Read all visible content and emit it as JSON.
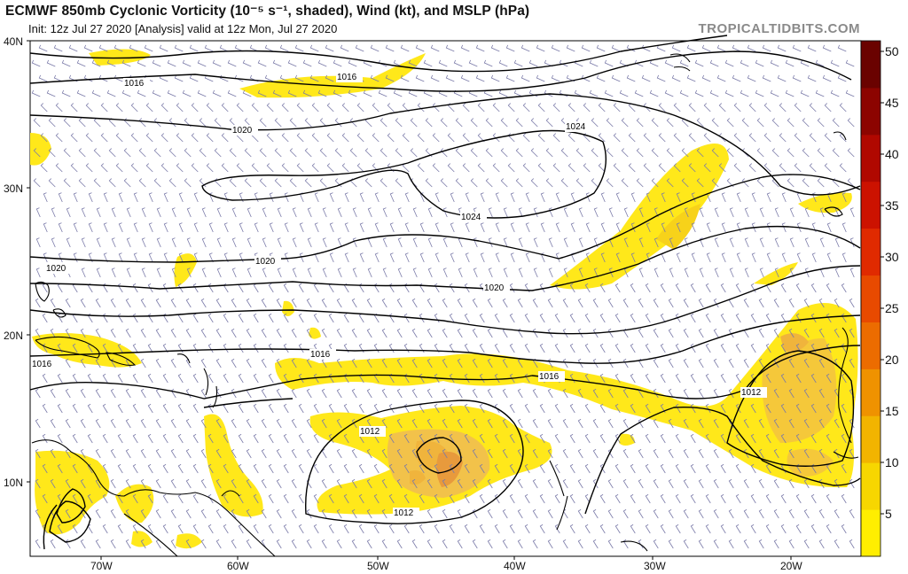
{
  "header": {
    "title": "ECMWF 850mb Cyclonic Vorticity (10⁻⁵ s⁻¹, shaded), Wind (kt), and MSLP (hPa)",
    "subtitle": "Init: 12z Jul 27 2020  [Analysis]   valid at 12z Mon, Jul 27 2020",
    "brand": "TROPICALTIDBITS.COM"
  },
  "map": {
    "lat_labels": [
      "40N",
      "30N",
      "20N",
      "10N"
    ],
    "lon_labels": [
      "70W",
      "60W",
      "50W",
      "40W",
      "30W",
      "20W"
    ],
    "isobar_labels": [
      "1016",
      "1016",
      "1020",
      "1024",
      "1024",
      "1020",
      "1020",
      "1020",
      "1016",
      "1016",
      "1016",
      "1012",
      "1012",
      "1012"
    ]
  },
  "colorbar": {
    "ticks": [
      "50",
      "45",
      "40",
      "35",
      "30",
      "25",
      "20",
      "15",
      "10",
      "5"
    ],
    "colors": [
      "#ffee00",
      "#f7d600",
      "#f2b400",
      "#ef9200",
      "#ec6c00",
      "#e84a00",
      "#e02a00",
      "#cc1200",
      "#b00800",
      "#8c0400",
      "#6a0200"
    ]
  }
}
